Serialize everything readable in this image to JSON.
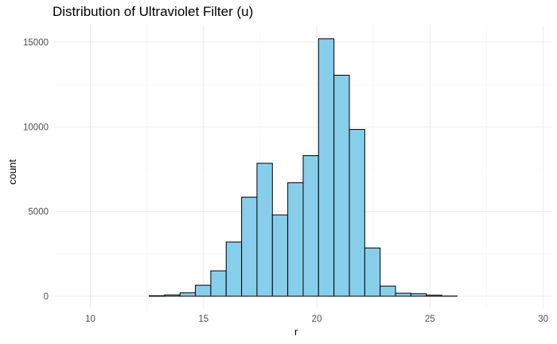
{
  "chart_data": {
    "type": "bar",
    "title": "Distribution of Ultraviolet Filter (u)",
    "xlabel": "r",
    "ylabel": "count",
    "xlim": [
      8.4,
      30.4
    ],
    "ylim": [
      0,
      15800
    ],
    "xticks": [
      10,
      15,
      20,
      25,
      30
    ],
    "yticks": [
      0,
      5000,
      10000,
      15000
    ],
    "grid": true,
    "bin_width": 0.68,
    "bins": [
      {
        "x0": 9.2,
        "count": 0
      },
      {
        "x0": 9.88,
        "count": 0
      },
      {
        "x0": 10.56,
        "count": 0
      },
      {
        "x0": 11.24,
        "count": 0
      },
      {
        "x0": 11.92,
        "count": 0
      },
      {
        "x0": 12.6,
        "count": 30
      },
      {
        "x0": 13.28,
        "count": 80
      },
      {
        "x0": 13.96,
        "count": 200
      },
      {
        "x0": 14.64,
        "count": 650
      },
      {
        "x0": 15.32,
        "count": 1500
      },
      {
        "x0": 16.0,
        "count": 3200
      },
      {
        "x0": 16.68,
        "count": 5850
      },
      {
        "x0": 17.36,
        "count": 7850
      },
      {
        "x0": 18.04,
        "count": 4800
      },
      {
        "x0": 18.72,
        "count": 6700
      },
      {
        "x0": 19.4,
        "count": 8300
      },
      {
        "x0": 20.08,
        "count": 15200
      },
      {
        "x0": 20.76,
        "count": 13050
      },
      {
        "x0": 21.44,
        "count": 9850
      },
      {
        "x0": 22.12,
        "count": 2850
      },
      {
        "x0": 22.8,
        "count": 600
      },
      {
        "x0": 23.48,
        "count": 180
      },
      {
        "x0": 24.16,
        "count": 150
      },
      {
        "x0": 24.84,
        "count": 60
      },
      {
        "x0": 25.52,
        "count": 10
      },
      {
        "x0": 26.2,
        "count": 0
      },
      {
        "x0": 26.88,
        "count": 0
      },
      {
        "x0": 27.56,
        "count": 0
      },
      {
        "x0": 28.24,
        "count": 0
      },
      {
        "x0": 28.92,
        "count": 0
      }
    ],
    "colors": {
      "fill": "#87CEEB",
      "stroke": "#000000",
      "grid_major": "#ebebeb",
      "grid_minor": "#f5f5f5",
      "tick_text": "#4d4d4d"
    }
  }
}
